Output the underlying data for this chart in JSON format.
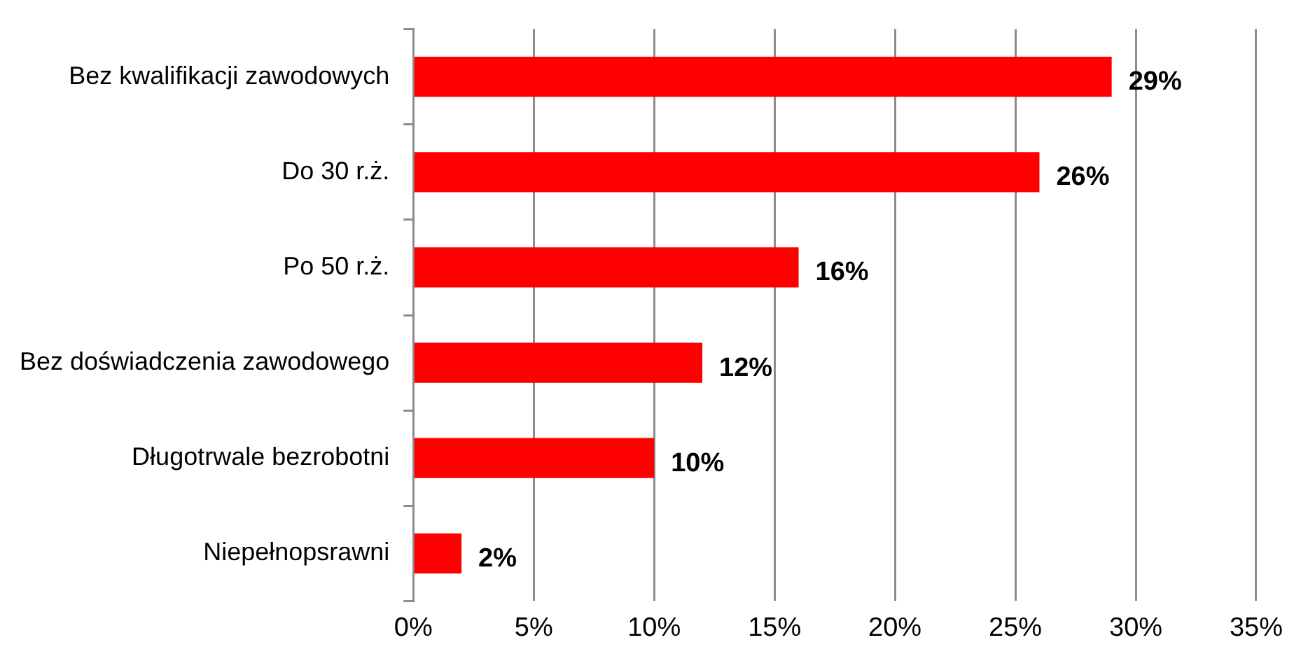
{
  "chart_data": {
    "type": "bar",
    "orientation": "horizontal",
    "categories": [
      "Bez kwalifikacji zawodowych",
      "Do 30 r.ż.",
      "Po 50 r.ż.",
      "Bez doświadczenia zawodowego",
      "Długotrwale bezrobotni",
      "Niepełnopsrawni"
    ],
    "series": [
      {
        "color": "#ff0000",
        "values": [
          29,
          26,
          16,
          12,
          10,
          2
        ],
        "value_labels": [
          "29%",
          "26%",
          "16%",
          "12%",
          "10%",
          "2%"
        ]
      }
    ],
    "xlim": [
      0,
      35
    ],
    "xticks": [
      {
        "value": 0,
        "label": "0%"
      },
      {
        "value": 5,
        "label": "5%"
      },
      {
        "value": 10,
        "label": "10%"
      },
      {
        "value": 15,
        "label": "15%"
      },
      {
        "value": 20,
        "label": "20%"
      },
      {
        "value": 25,
        "label": "25%"
      },
      {
        "value": 30,
        "label": "30%"
      },
      {
        "value": 35,
        "label": "35%"
      }
    ],
    "grid": "x",
    "legend": false
  }
}
